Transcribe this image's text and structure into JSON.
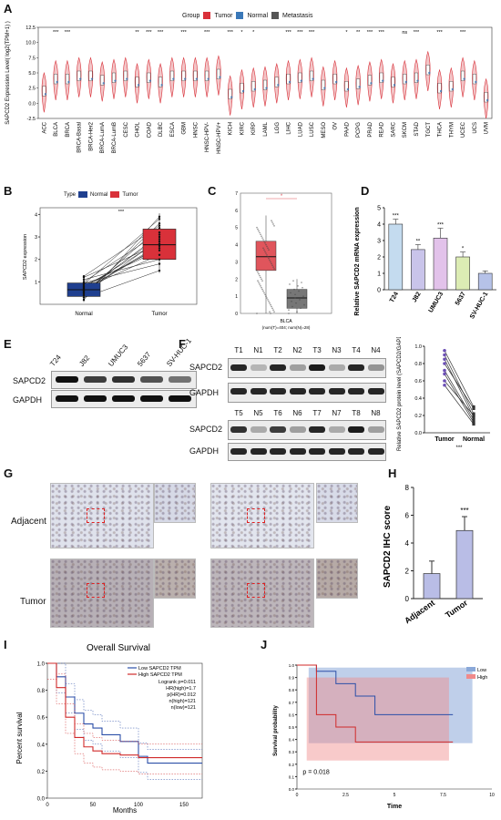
{
  "panels": {
    "A": {
      "letter": "A",
      "legend_title": "Group",
      "legend": [
        "Tumor",
        "Normal",
        "Metastasis"
      ],
      "ylabel": "SAPCD2 Expression Level( log2(TPM+1) )",
      "yticks": [
        "-2.5",
        "0.0",
        "2.5",
        "5.0",
        "7.5",
        "10.0",
        "12.5"
      ],
      "cancers": [
        "ACC",
        "BLCA",
        "BRCA",
        "BRCA-Basal",
        "BRCA-Her2",
        "BRCA-LumA",
        "BRCA-LumB",
        "CESC",
        "CHOL",
        "COAD",
        "DLBC",
        "ESCA",
        "GBM",
        "HNSC",
        "HNSC-HPV-",
        "HNSC-HPV+",
        "KICH",
        "KIRC",
        "KIRP",
        "LAML",
        "LGG",
        "LIHC",
        "LUAD",
        "LUSC",
        "MESO",
        "OV",
        "PAAD",
        "PCPG",
        "PRAD",
        "READ",
        "SARC",
        "SKCM",
        "STAD",
        "TGCT",
        "THCA",
        "THYM",
        "UCEC",
        "UCS",
        "UVM"
      ],
      "sig": [
        "",
        "***",
        "***",
        "",
        "",
        "",
        "",
        "",
        "**",
        "***",
        "***",
        "",
        "***",
        "",
        "***",
        "",
        "***",
        "*",
        "*",
        "",
        "",
        "***",
        "***",
        "***",
        "",
        "",
        "*",
        "**",
        "***",
        "***",
        "",
        "ns",
        "***",
        "",
        "***",
        "",
        "***",
        "",
        ""
      ]
    },
    "B": {
      "letter": "B",
      "legend_title": "Type",
      "legend": [
        "Normal",
        "Tumor"
      ],
      "ylabel": "SAPCD2 expression",
      "yticks": [
        "1",
        "2",
        "3",
        "4"
      ],
      "xticks": [
        "Normal",
        "Tumor"
      ],
      "sig": "***"
    },
    "C": {
      "letter": "C",
      "yticks": [
        "0",
        "1",
        "2",
        "3",
        "4",
        "5",
        "6",
        "7"
      ],
      "sig": "*",
      "xlabel": "BLCA",
      "note": "(num(T)=404; num(N)=28)"
    },
    "D": {
      "letter": "D",
      "ylabel": "Relative SAPCD2 mRNA expression",
      "yticks": [
        "0",
        "1",
        "2",
        "3",
        "4",
        "5"
      ],
      "cells": [
        "T24",
        "J82",
        "UMUC3",
        "5637",
        "SV-HUC-1"
      ],
      "sig": [
        "***",
        "**",
        "***",
        "*",
        ""
      ]
    },
    "E": {
      "letter": "E",
      "cells": [
        "T24",
        "J82",
        "UMUC3",
        "5637",
        "SV-HUC-1"
      ],
      "rows": [
        "SAPCD2",
        "GAPDH"
      ]
    },
    "F": {
      "letter": "F",
      "top_lanes": [
        "T1",
        "N1",
        "T2",
        "N2",
        "T3",
        "N3",
        "T4",
        "N4"
      ],
      "bottom_lanes": [
        "T5",
        "N5",
        "T6",
        "N6",
        "T7",
        "N7",
        "T8",
        "N8"
      ],
      "rows": [
        "SAPCD2",
        "GAPDH"
      ],
      "ylabel": "Relative SAPCD2 protein level (SAPCD2/GAPDH)",
      "yticks": [
        "0.0",
        "0.2",
        "0.4",
        "0.6",
        "0.8",
        "1.0"
      ],
      "xticks": [
        "Tumor",
        "Normal"
      ],
      "sig": "***"
    },
    "G": {
      "letter": "G",
      "rows": [
        "Adjacent",
        "Tumor"
      ]
    },
    "H": {
      "letter": "H",
      "ylabel": "SAPCD2 IHC score",
      "yticks": [
        "0",
        "2",
        "4",
        "6",
        "8"
      ],
      "xticks": [
        "Adjacent",
        "Tumor"
      ],
      "sig": "***"
    },
    "I": {
      "letter": "I",
      "title": "Overall Survival",
      "legend": [
        "Low SAPCD2 TPM",
        "High SAPCD2 TPM"
      ],
      "stats": [
        "Logrank p=0.011",
        "HR(high)=1.7",
        "p(HR)=0.012",
        "n(high)=121",
        "n(low)=121"
      ],
      "ylabel": "Percent survival",
      "xlabel": "Months",
      "yticks": [
        "0.0",
        "0.2",
        "0.4",
        "0.6",
        "0.8",
        "1.0"
      ],
      "xticks": [
        "0",
        "50",
        "100",
        "150"
      ]
    },
    "J": {
      "letter": "J",
      "legend": [
        "Low",
        "High"
      ],
      "ylabel": "Survival probability",
      "xlabel": "Time",
      "pval": "p = 0.018",
      "yticks": [
        "0.0",
        "0.1",
        "0.2",
        "0.3",
        "0.4",
        "0.5",
        "0.6",
        "0.7",
        "0.8",
        "0.9",
        "1.0"
      ],
      "xticks": [
        "0",
        "2.5",
        "5",
        "7.5",
        "10"
      ]
    }
  },
  "colors": {
    "tumor": "#d9313a",
    "normal": "#3a78b8",
    "navy": "#1f3f8f",
    "lavender": "#b9bde6",
    "green": "#d8ecb0",
    "olive": "#9aa852"
  },
  "chart_data": [
    {
      "panel": "D",
      "type": "bar",
      "categories": [
        "T24",
        "J82",
        "UMUC3",
        "5637",
        "SV-HUC-1"
      ],
      "values": [
        4.0,
        2.45,
        3.15,
        2.0,
        1.0
      ],
      "errors": [
        0.3,
        0.3,
        0.6,
        0.3,
        0.15
      ],
      "ylim": [
        0,
        5
      ]
    },
    {
      "panel": "H",
      "type": "bar",
      "categories": [
        "Adjacent",
        "Tumor"
      ],
      "values": [
        1.8,
        4.9
      ],
      "errors": [
        0.9,
        1.0
      ],
      "ylim": [
        0,
        8
      ]
    },
    {
      "panel": "F",
      "type": "line",
      "x": [
        "Tumor",
        "Normal"
      ],
      "series": [
        {
          "values": [
            0.95,
            0.3
          ]
        },
        {
          "values": [
            0.9,
            0.22
          ]
        },
        {
          "values": [
            0.85,
            0.18
          ]
        },
        {
          "values": [
            0.8,
            0.28
          ]
        },
        {
          "values": [
            0.72,
            0.15
          ]
        },
        {
          "values": [
            0.68,
            0.12
          ]
        },
        {
          "values": [
            0.6,
            0.2
          ]
        },
        {
          "values": [
            0.55,
            0.1
          ]
        }
      ],
      "ylim": [
        0,
        1.0
      ]
    },
    {
      "panel": "B",
      "type": "box",
      "categories": [
        "Normal",
        "Tumor"
      ],
      "series": [
        {
          "name": "Normal",
          "q1": 0.35,
          "median": 0.65,
          "q3": 0.95,
          "min": 0.1,
          "max": 1.3
        },
        {
          "name": "Tumor",
          "q1": 2.0,
          "median": 2.65,
          "q3": 3.35,
          "min": 1.4,
          "max": 4.05
        }
      ],
      "ylim": [
        0,
        4.3
      ]
    },
    {
      "panel": "C",
      "type": "box",
      "categories": [
        "T",
        "N"
      ],
      "series": [
        {
          "q1": 2.5,
          "median": 3.3,
          "q3": 4.2,
          "min": 0.0,
          "max": 5.7
        },
        {
          "q1": 0.3,
          "median": 0.9,
          "q3": 1.4,
          "min": 0.0,
          "max": 2.0
        }
      ],
      "ylim": [
        0,
        7
      ]
    },
    {
      "panel": "I",
      "type": "line",
      "x": [
        0,
        10,
        20,
        30,
        40,
        50,
        60,
        80,
        100,
        110,
        170
      ],
      "series": [
        {
          "name": "Low SAPCD2 TPM",
          "values": [
            1.0,
            0.9,
            0.75,
            0.63,
            0.55,
            0.52,
            0.47,
            0.42,
            0.31,
            0.26,
            0.26
          ]
        },
        {
          "name": "High SAPCD2 TPM",
          "values": [
            1.0,
            0.82,
            0.6,
            0.45,
            0.38,
            0.35,
            0.33,
            0.32,
            0.3,
            0.3,
            0.3
          ]
        }
      ],
      "ylim": [
        0,
        1.0
      ]
    },
    {
      "panel": "J",
      "type": "line",
      "x": [
        0,
        1,
        2,
        3,
        4,
        5,
        7.5,
        8
      ],
      "series": [
        {
          "name": "Low",
          "values": [
            1.0,
            0.95,
            0.85,
            0.75,
            0.6,
            0.6,
            0.6,
            0.6
          ]
        },
        {
          "name": "High",
          "values": [
            1.0,
            0.6,
            0.5,
            0.38,
            0.38,
            0.38,
            0.38,
            0.38
          ]
        }
      ],
      "ylim": [
        0,
        1.0
      ]
    }
  ]
}
